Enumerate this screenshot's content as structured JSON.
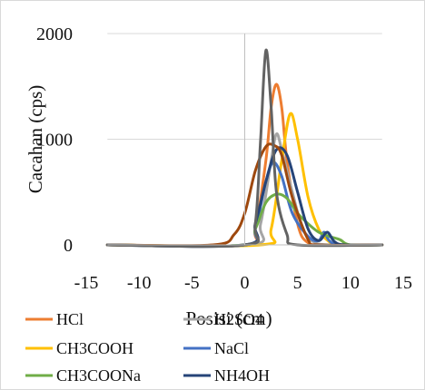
{
  "chart_data": {
    "type": "line",
    "title": "",
    "xlabel": "Posisi (cm)",
    "ylabel": "Cacahan (cps)",
    "xlim": [
      -15,
      15
    ],
    "ylim": [
      0,
      2000
    ],
    "x_ticks": [
      "-15",
      "-10",
      "-5",
      "0",
      "5",
      "10",
      "15"
    ],
    "y_ticks": [
      "0",
      "1000",
      "2000"
    ],
    "grid": "horizontal",
    "legend_position": "bottom",
    "series": [
      {
        "name": "HCl",
        "color": "#ED7D31",
        "points": [
          [
            -13,
            0
          ],
          [
            0,
            0
          ],
          [
            1,
            150
          ],
          [
            2,
            800
          ],
          [
            2.5,
            1300
          ],
          [
            3,
            1520
          ],
          [
            3.5,
            1300
          ],
          [
            4,
            800
          ],
          [
            5,
            200
          ],
          [
            6,
            20
          ],
          [
            8,
            0
          ],
          [
            13,
            0
          ]
        ]
      },
      {
        "name": "H2SO4",
        "color": "#A5A5A5",
        "points": [
          [
            -13,
            0
          ],
          [
            0.5,
            0
          ],
          [
            1.5,
            200
          ],
          [
            2.5,
            800
          ],
          [
            3,
            1050
          ],
          [
            3.5,
            900
          ],
          [
            4.5,
            500
          ],
          [
            5.5,
            150
          ],
          [
            6.5,
            30
          ],
          [
            8,
            0
          ],
          [
            13,
            0
          ]
        ]
      },
      {
        "name": "CH3COOH",
        "color": "#FFC000",
        "points": [
          [
            -13,
            0
          ],
          [
            1.5,
            0
          ],
          [
            2.5,
            150
          ],
          [
            3.5,
            800
          ],
          [
            4.3,
            1240
          ],
          [
            5,
            1000
          ],
          [
            6,
            450
          ],
          [
            7,
            150
          ],
          [
            8,
            30
          ],
          [
            9,
            0
          ],
          [
            13,
            0
          ]
        ]
      },
      {
        "name": "NaCl",
        "color": "#4472C4",
        "points": [
          [
            -13,
            0
          ],
          [
            0,
            0
          ],
          [
            1,
            150
          ],
          [
            2,
            600
          ],
          [
            2.7,
            780
          ],
          [
            3.5,
            650
          ],
          [
            4.5,
            300
          ],
          [
            6,
            80
          ],
          [
            7,
            40
          ],
          [
            7.5,
            120
          ],
          [
            8,
            40
          ],
          [
            9,
            0
          ],
          [
            13,
            0
          ]
        ]
      },
      {
        "name": "CH3COONa",
        "color": "#70AD47",
        "points": [
          [
            -13,
            0
          ],
          [
            0,
            0
          ],
          [
            1,
            150
          ],
          [
            2,
            400
          ],
          [
            3,
            480
          ],
          [
            4,
            440
          ],
          [
            5,
            300
          ],
          [
            6,
            200
          ],
          [
            7,
            120
          ],
          [
            8,
            80
          ],
          [
            9,
            50
          ],
          [
            10,
            0
          ],
          [
            13,
            0
          ]
        ]
      },
      {
        "name": "NH4OH",
        "color": "#264478",
        "points": [
          [
            -13,
            0
          ],
          [
            0,
            0
          ],
          [
            1,
            200
          ],
          [
            2,
            600
          ],
          [
            3,
            900
          ],
          [
            4,
            850
          ],
          [
            5,
            500
          ],
          [
            6,
            150
          ],
          [
            7,
            40
          ],
          [
            7.8,
            120
          ],
          [
            8.5,
            30
          ],
          [
            9.5,
            0
          ],
          [
            13,
            0
          ]
        ]
      },
      {
        "name": "",
        "color": "#9E480E",
        "points": [
          [
            -13,
            0
          ],
          [
            -3,
            0
          ],
          [
            -1,
            100
          ],
          [
            0,
            300
          ],
          [
            1,
            700
          ],
          [
            2,
            930
          ],
          [
            2.8,
            940
          ],
          [
            3.5,
            850
          ],
          [
            4.5,
            450
          ],
          [
            6,
            50
          ],
          [
            7,
            0
          ],
          [
            13,
            0
          ]
        ]
      },
      {
        "name": "",
        "color": "#636363",
        "points": [
          [
            -13,
            0
          ],
          [
            0,
            0
          ],
          [
            1,
            200
          ],
          [
            1.5,
            1000
          ],
          [
            2,
            1840
          ],
          [
            2.5,
            1300
          ],
          [
            3,
            500
          ],
          [
            4,
            100
          ],
          [
            5,
            0
          ],
          [
            13,
            0
          ]
        ]
      }
    ]
  }
}
